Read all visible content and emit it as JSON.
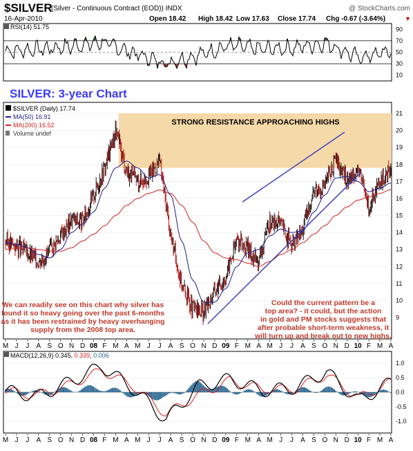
{
  "header": {
    "symbol": "$SILVER",
    "description": "(Silver - Continuous Contract (EOD)) INDX",
    "watermark": "@ StockCharts.com",
    "date": "16-Apr-2010",
    "open": "Open 18.42",
    "high": "High 18.42",
    "low": "Low 17.63",
    "close": "Close 17.74",
    "chg": "Chg -0.67 (-3.64%)",
    "chg_arrow": "▼"
  },
  "rsi": {
    "label": "RSI(14) 51.75",
    "ticks": [
      90,
      70,
      50,
      30,
      10
    ]
  },
  "price": {
    "chart_title": "SILVER: 3-year Chart",
    "legend": {
      "main": "$SILVER (Daily) 17.74",
      "ma50": "MA(50) 16.91",
      "ma200": "MA(200) 16.52",
      "volume": "Volume undef"
    },
    "resistance_label": "STRONG RESISTANCE APPROACHING HIGHS",
    "annotation_left": [
      "We can readily see on this chart why silver has",
      "found it so heavy going over the past 6-months",
      "as it has been restrained by heavy overhanging",
      "supply from the 2008 top area."
    ],
    "annotation_right": [
      "Could the current pattern be a",
      "top area? - it could, but the action",
      "in gold and PM stocks suggests that",
      "after probable short-term weakness, it",
      "will turn up and break out to new highs."
    ],
    "ticks": [
      21,
      20,
      19,
      18,
      17,
      16,
      15,
      14,
      13,
      12,
      11,
      10,
      9
    ]
  },
  "macd": {
    "label_prefix": "MACD(12,26,9)",
    "v1": "0.345",
    "v2": "0.339",
    "v3": "0.006",
    "ticks": [
      "1.0",
      "0.5",
      "0.0",
      "-0.5",
      "-1.0"
    ]
  },
  "x_axis": {
    "labels": [
      "M",
      "J",
      "J",
      "A",
      "S",
      "O",
      "N",
      "D",
      "08",
      "F",
      "M",
      "A",
      "M",
      "J",
      "J",
      "A",
      "S",
      "O",
      "N",
      "D",
      "09",
      "F",
      "M",
      "A",
      "M",
      "J",
      "J",
      "A",
      "S",
      "O",
      "N",
      "D",
      "10",
      "F",
      "M",
      "A"
    ]
  },
  "colors": {
    "price_bar": "#000000",
    "down_bar": "#b00000",
    "ma50": "#1a1a8c",
    "ma200": "#d42020",
    "trendline": "#4040c0",
    "resistance_band": "#f6d9a8",
    "annotation_text": "#c0392b",
    "title_blue": "#3a3aff",
    "macd_hist": "#1f5f8b"
  },
  "chart_data": [
    {
      "type": "line",
      "title": "RSI(14)",
      "ylim": [
        0,
        100
      ],
      "current": 51.75,
      "x": [
        "2007-05",
        "2007-08",
        "2007-11",
        "2008-02",
        "2008-05",
        "2008-08",
        "2008-11",
        "2009-02",
        "2009-05",
        "2009-08",
        "2009-11",
        "2010-02",
        "2010-04"
      ],
      "values": [
        52,
        55,
        60,
        68,
        48,
        30,
        45,
        62,
        55,
        58,
        66,
        40,
        52
      ]
    },
    {
      "type": "line",
      "title": "$SILVER (Daily)",
      "ylim": [
        9,
        21
      ],
      "x": [
        "2007-05",
        "2007-06",
        "2007-07",
        "2007-08",
        "2007-09",
        "2007-10",
        "2007-11",
        "2007-12",
        "2008-01",
        "2008-02",
        "2008-03",
        "2008-04",
        "2008-05",
        "2008-06",
        "2008-07",
        "2008-08",
        "2008-09",
        "2008-10",
        "2008-11",
        "2008-12",
        "2009-01",
        "2009-02",
        "2009-03",
        "2009-04",
        "2009-05",
        "2009-06",
        "2009-07",
        "2009-08",
        "2009-09",
        "2009-10",
        "2009-11",
        "2009-12",
        "2010-01",
        "2010-02",
        "2010-03",
        "2010-04"
      ],
      "series": [
        {
          "name": "$SILVER (Daily) 17.74",
          "values": [
            13.5,
            13.2,
            12.8,
            12.3,
            12.9,
            13.8,
            14.8,
            14.6,
            16.2,
            17.8,
            20.0,
            17.6,
            17.0,
            17.3,
            18.2,
            13.8,
            11.0,
            9.5,
            9.3,
            10.6,
            11.4,
            13.6,
            13.0,
            12.3,
            14.6,
            14.5,
            13.2,
            14.2,
            16.5,
            16.8,
            18.3,
            17.0,
            17.8,
            15.5,
            16.8,
            17.74
          ]
        },
        {
          "name": "MA(50) 16.91",
          "values": [
            13.4,
            13.3,
            13.1,
            12.7,
            12.5,
            13.0,
            14.0,
            14.5,
            15.2,
            16.6,
            17.8,
            18.2,
            17.8,
            17.2,
            17.4,
            16.2,
            13.5,
            11.2,
            9.9,
            9.9,
            10.7,
            12.0,
            12.8,
            13.0,
            13.8,
            14.2,
            14.0,
            14.1,
            15.2,
            16.2,
            17.2,
            17.3,
            17.0,
            16.4,
            16.6,
            16.91
          ]
        },
        {
          "name": "MA(200) 16.52",
          "values": [
            13.0,
            13.1,
            13.1,
            13.0,
            12.9,
            12.9,
            13.1,
            13.5,
            13.9,
            14.4,
            15.0,
            15.6,
            16.0,
            16.3,
            16.5,
            16.3,
            15.6,
            14.6,
            13.5,
            12.8,
            12.5,
            12.4,
            12.2,
            12.0,
            12.3,
            12.7,
            13.0,
            13.4,
            13.9,
            14.4,
            15.0,
            15.5,
            15.9,
            16.1,
            16.3,
            16.52
          ]
        }
      ],
      "resistance_band": [
        17.8,
        21.0
      ],
      "trendline_upper": [
        [
          "2009-02",
          14.7
        ],
        [
          "2009-12",
          19.3
        ]
      ],
      "trendline_lower": [
        [
          "2008-11",
          8.6
        ],
        [
          "2010-02",
          16.2
        ]
      ]
    },
    {
      "type": "line",
      "title": "MACD(12,26,9)",
      "ylim": [
        -1.25,
        1.25
      ],
      "x": [
        "2007-05",
        "2007-08",
        "2007-11",
        "2008-02",
        "2008-05",
        "2008-08",
        "2008-11",
        "2009-02",
        "2009-05",
        "2009-08",
        "2009-11",
        "2010-02",
        "2010-04"
      ],
      "series": [
        {
          "name": "MACD",
          "values": [
            0.05,
            -0.15,
            0.35,
            0.9,
            0.1,
            -0.95,
            0.2,
            0.45,
            0.05,
            0.15,
            0.7,
            -0.3,
            0.345
          ]
        },
        {
          "name": "Signal",
          "values": [
            0.03,
            -0.1,
            0.25,
            0.75,
            0.2,
            -0.75,
            -0.1,
            0.4,
            0.1,
            0.1,
            0.6,
            -0.2,
            0.339
          ]
        },
        {
          "name": "Histogram",
          "values": [
            0.02,
            -0.05,
            0.1,
            0.15,
            -0.1,
            -0.2,
            0.3,
            0.05,
            -0.05,
            0.05,
            0.1,
            -0.1,
            0.006
          ]
        }
      ]
    }
  ]
}
